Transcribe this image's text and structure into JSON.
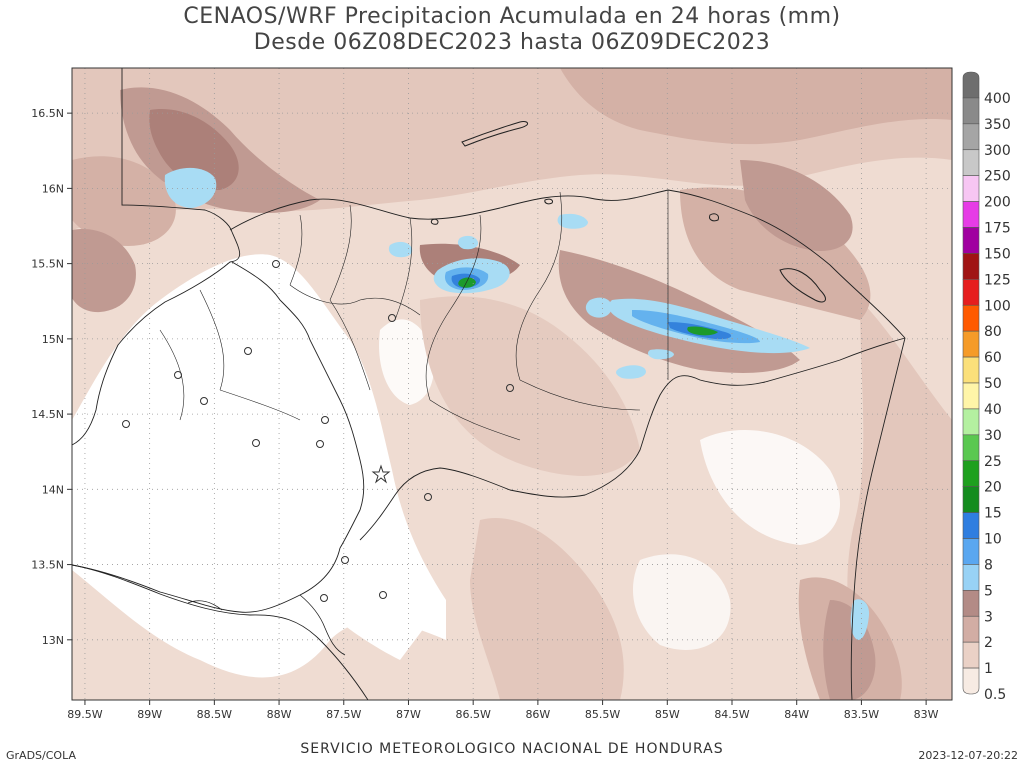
{
  "title_line1": "CENAOS/WRF Precipitacion Acumulada en 24 horas (mm)",
  "title_line2": "Desde 06Z08DEC2023 hasta 06Z09DEC2023",
  "footer": {
    "credit": "GrADS/COLA",
    "agency": "SERVICIO METEOROLOGICO NACIONAL DE HONDURAS",
    "timestamp": "2023-12-07-20:22"
  },
  "map": {
    "lon_range": [
      -89.6,
      -82.8
    ],
    "lat_range": [
      12.6,
      16.8
    ],
    "x_ticks": [
      {
        "value": -89.5,
        "label": "89.5W"
      },
      {
        "value": -89,
        "label": "89W"
      },
      {
        "value": -88.5,
        "label": "88.5W"
      },
      {
        "value": -88,
        "label": "88W"
      },
      {
        "value": -87.5,
        "label": "87.5W"
      },
      {
        "value": -87,
        "label": "87W"
      },
      {
        "value": -86.5,
        "label": "86.5W"
      },
      {
        "value": -86,
        "label": "86W"
      },
      {
        "value": -85.5,
        "label": "85.5W"
      },
      {
        "value": -85,
        "label": "85W"
      },
      {
        "value": -84.5,
        "label": "84.5W"
      },
      {
        "value": -84,
        "label": "84W"
      },
      {
        "value": -83.5,
        "label": "83.5W"
      },
      {
        "value": -83,
        "label": "83W"
      }
    ],
    "y_ticks": [
      {
        "value": 13,
        "label": "13N"
      },
      {
        "value": 13.5,
        "label": "13.5N"
      },
      {
        "value": 14,
        "label": "14N"
      },
      {
        "value": 14.5,
        "label": "14.5N"
      },
      {
        "value": 15,
        "label": "15N"
      },
      {
        "value": 15.5,
        "label": "15.5N"
      },
      {
        "value": 16,
        "label": "16N"
      },
      {
        "value": 16.5,
        "label": "16.5N"
      }
    ],
    "grid": true
  },
  "legend": {
    "placement": "right",
    "levels": [
      {
        "label": "400",
        "color": "#6e6e6e"
      },
      {
        "label": "350",
        "color": "#8a8a8a"
      },
      {
        "label": "300",
        "color": "#a5a5a5"
      },
      {
        "label": "250",
        "color": "#c8c8c8"
      },
      {
        "label": "200",
        "color": "#f7c6f3"
      },
      {
        "label": "175",
        "color": "#e63ce6"
      },
      {
        "label": "150",
        "color": "#a000a0"
      },
      {
        "label": "125",
        "color": "#a01414"
      },
      {
        "label": "100",
        "color": "#e61e1e"
      },
      {
        "label": "80",
        "color": "#ff5a00"
      },
      {
        "label": "60",
        "color": "#f59b28"
      },
      {
        "label": "50",
        "color": "#fbe07a"
      },
      {
        "label": "40",
        "color": "#fff5a8"
      },
      {
        "label": "30",
        "color": "#b4f0a0"
      },
      {
        "label": "25",
        "color": "#5ac850"
      },
      {
        "label": "20",
        "color": "#1ea01e"
      },
      {
        "label": "15",
        "color": "#148c1e"
      },
      {
        "label": "10",
        "color": "#2f7ee0"
      },
      {
        "label": "8",
        "color": "#5aa7f0"
      },
      {
        "label": "5",
        "color": "#98d2f5"
      },
      {
        "label": "3",
        "color": "#b38b86"
      },
      {
        "label": "2",
        "color": "#d2ada4"
      },
      {
        "label": "1",
        "color": "#ead1c6"
      },
      {
        "label": "0.5",
        "color": "#f7ebe3"
      }
    ]
  },
  "colors": {
    "lt1": "#ffffff",
    "c05": "#f6e9e1",
    "c1": "#ebd4ca",
    "c2": "#dcbcb2",
    "c3": "#c6a39b",
    "c5": "#b08580",
    "c8": "#a8dcf4",
    "c10": "#64b2ee",
    "c15": "#3482dc",
    "c20": "#1c9a2c"
  }
}
